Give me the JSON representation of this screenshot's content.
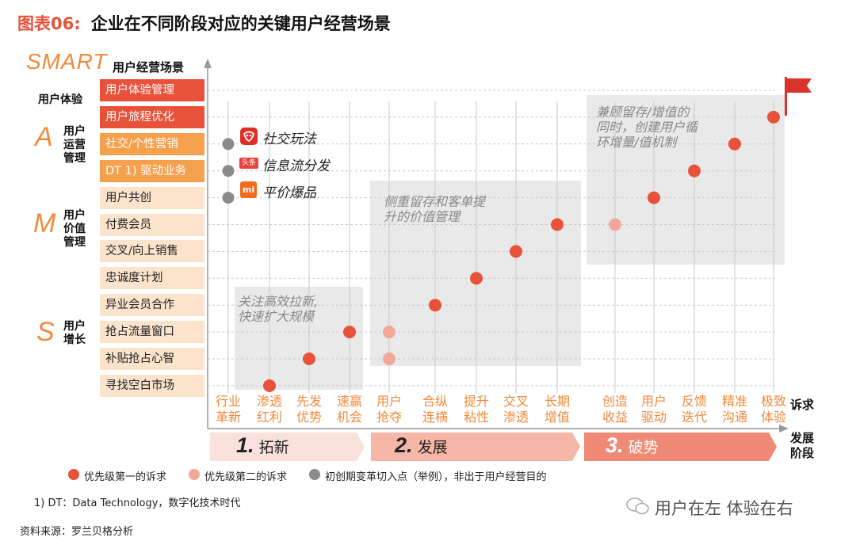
{
  "title": {
    "prefix": "图表06:",
    "main": "企业在不同阶段对应的关键用户经营场景"
  },
  "chart_data": {
    "type": "scatter",
    "y_axis_top_label": "SMART",
    "y_axis_title": "用户经营场景",
    "x_axis_title_stage": "诉求",
    "x_axis_title_phase": "发展\n阶段",
    "groups": [
      {
        "letter": "",
        "label": "用户体验",
        "color": "#e8523a",
        "scenes": [
          "用户体验管理",
          "用户旅程优化"
        ]
      },
      {
        "letter": "A",
        "label": "用户\n运营\n管理",
        "color": "#f5a04c",
        "scenes": [
          "社交/个性营销",
          "DT 1) 驱动业务"
        ]
      },
      {
        "letter": "M",
        "label": "用户\n价值\n管理",
        "color": "#fbe3cc",
        "scenes": [
          "用户共创",
          "付费会员",
          "交叉/向上销售",
          "忠诚度计划"
        ]
      },
      {
        "letter": "S",
        "label": "用户\n增长",
        "color": "#fbe3cc",
        "scenes": [
          "异业会员合作",
          "抢占流量窗口",
          "补贴抢占心智",
          "寻找空白市场"
        ]
      }
    ],
    "scenes_top_to_bottom": [
      "用户体验管理",
      "用户旅程优化",
      "社交/个性营销",
      "DT 1) 驱动业务",
      "用户共创",
      "付费会员",
      "交叉/向上销售",
      "忠诚度计划",
      "异业会员合作",
      "抢占流量窗口",
      "补贴抢占心智",
      "寻找空白市场"
    ],
    "stages": [
      "行业\n革新",
      "渗透\n红利",
      "先发\n优势",
      "速赢\n机会",
      "用户\n抢夺",
      "合纵\n连横",
      "提升\n粘性",
      "交叉\n渗透",
      "长期\n增值",
      "创造\n收益",
      "用户\n驱动",
      "反馈\n迭代",
      "精准\n沟通",
      "极致\n体验"
    ],
    "phases": [
      {
        "num": "1.",
        "name": "拓新",
        "color": "#fbe1dc"
      },
      {
        "num": "2.",
        "name": "发展",
        "color": "#f6b7a8"
      },
      {
        "num": "3.",
        "name": "破势",
        "color": "#ef8a77"
      }
    ],
    "series": [
      {
        "name": "优先级第一的诉求",
        "color": "#e8523a",
        "points": [
          {
            "stage": "渗透\n红利",
            "scene": "寻找空白市场"
          },
          {
            "stage": "先发\n优势",
            "scene": "补贴抢占心智"
          },
          {
            "stage": "速赢\n机会",
            "scene": "抢占流量窗口"
          },
          {
            "stage": "合纵\n连横",
            "scene": "异业会员合作"
          },
          {
            "stage": "提升\n粘性",
            "scene": "忠诚度计划"
          },
          {
            "stage": "交叉\n渗透",
            "scene": "交叉/向上销售"
          },
          {
            "stage": "长期\n增值",
            "scene": "付费会员"
          },
          {
            "stage": "用户\n驱动",
            "scene": "用户共创"
          },
          {
            "stage": "反馈\n迭代",
            "scene": "DT 1) 驱动业务"
          },
          {
            "stage": "精准\n沟通",
            "scene": "社交/个性营销"
          },
          {
            "stage": "极致\n体验",
            "scene": "用户旅程优化"
          }
        ]
      },
      {
        "name": "优先级第二的诉求",
        "color": "#f2a898",
        "points": [
          {
            "stage": "用户\n抢夺",
            "scene": "抢占流量窗口"
          },
          {
            "stage": "用户\n抢夺",
            "scene": "补贴抢占心智"
          },
          {
            "stage": "创造\n收益",
            "scene": "付费会员"
          }
        ]
      },
      {
        "name": "初创期变革切入点（举例），非出于用户经营目的",
        "color": "#8a8a8a",
        "points": [
          {
            "stage": "行业\n革新",
            "scene": "社交/个性营销"
          },
          {
            "stage": "行业\n革新",
            "scene": "DT 1) 驱动业务"
          },
          {
            "stage": "行业\n革新",
            "scene": "用户共创"
          }
        ]
      }
    ],
    "platform_examples": [
      {
        "text": "社交玩法",
        "scene": "社交/个性营销",
        "icon": "pinduoduo-logo-icon",
        "color": "#e02e24"
      },
      {
        "text": "信息流分发",
        "scene": "DT 1) 驱动业务",
        "icon": "toutiao-logo-icon",
        "color": "#e8423a",
        "badge": "头条"
      },
      {
        "text": "平价爆品",
        "scene": "用户共创",
        "icon": "xiaomi-logo-icon",
        "color": "#f26b1d",
        "badge": "mi"
      }
    ],
    "annotations": [
      {
        "text": "关注高效拉新,\n快速扩大规模"
      },
      {
        "text": "侧重留存和客单提\n升的价值管理"
      },
      {
        "text": "兼顾留存/增值的\n同时，创建用户循\n环增量/值机制"
      }
    ]
  },
  "legend": [
    "优先级第一的诉求",
    "优先级第二的诉求",
    "初创期变革切入点（举例），非出于用户经营目的"
  ],
  "footnote": "1) DT：Data Technology，数字化技术时代",
  "source": "资料来源：罗兰贝格分析",
  "watermark": "用户在左 体验在右"
}
